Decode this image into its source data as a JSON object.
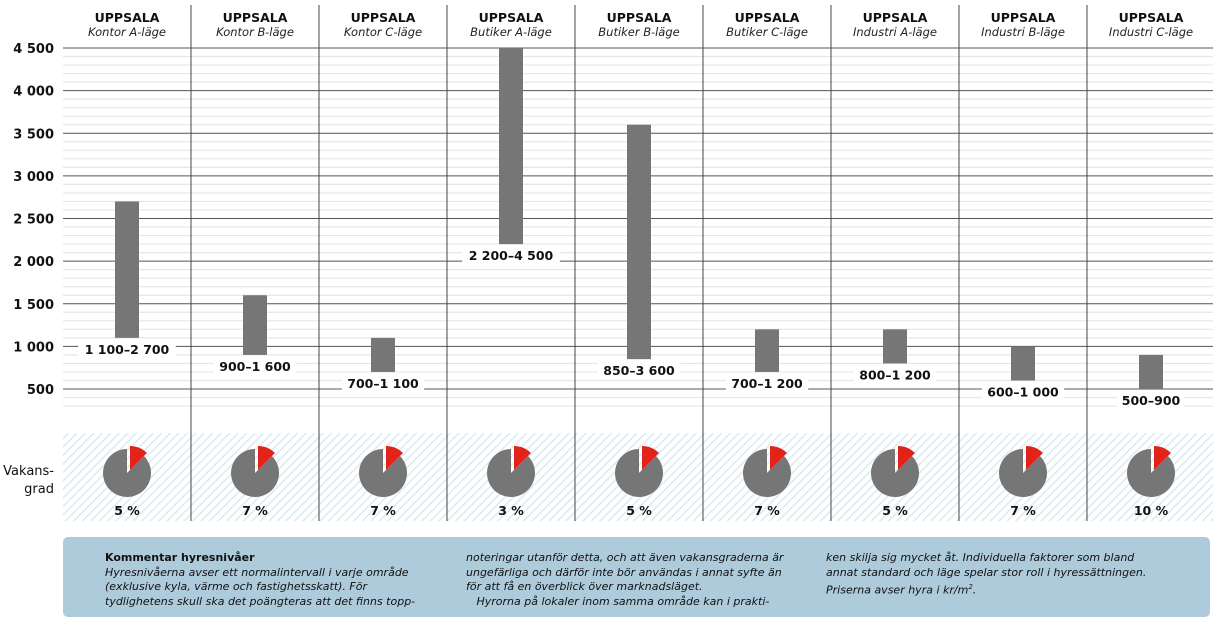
{
  "chart_data": {
    "type": "bar",
    "subtype": "floating-range",
    "ylim": [
      0,
      4500
    ],
    "yticks": [
      500,
      1000,
      1500,
      2000,
      2500,
      3000,
      3500,
      4000,
      4500
    ],
    "ytick_labels": [
      "500",
      "1 000",
      "1 500",
      "2 000",
      "2 500",
      "3 000",
      "3 500",
      "4 000",
      "4 500"
    ],
    "grid": true,
    "categories": [
      {
        "city": "UPPSALA",
        "type": "Kontor A-läge",
        "low": 1100,
        "high": 2700,
        "label": "1 100–2 700",
        "vacancy": 5,
        "vacancy_label": "5 %"
      },
      {
        "city": "UPPSALA",
        "type": "Kontor B-läge",
        "low": 900,
        "high": 1600,
        "label": "900–1 600",
        "vacancy": 7,
        "vacancy_label": "7 %"
      },
      {
        "city": "UPPSALA",
        "type": "Kontor C-läge",
        "low": 700,
        "high": 1100,
        "label": "700–1 100",
        "vacancy": 7,
        "vacancy_label": "7 %"
      },
      {
        "city": "UPPSALA",
        "type": "Butiker A-läge",
        "low": 2200,
        "high": 4500,
        "label": "2 200–4 500",
        "vacancy": 3,
        "vacancy_label": "3 %"
      },
      {
        "city": "UPPSALA",
        "type": "Butiker B-läge",
        "low": 850,
        "high": 3600,
        "label": "850–3 600",
        "vacancy": 5,
        "vacancy_label": "5 %"
      },
      {
        "city": "UPPSALA",
        "type": "Butiker C-läge",
        "low": 700,
        "high": 1200,
        "label": "700–1 200",
        "vacancy": 7,
        "vacancy_label": "7 %"
      },
      {
        "city": "UPPSALA",
        "type": "Industri A-läge",
        "low": 800,
        "high": 1200,
        "label": "800–1 200",
        "vacancy": 5,
        "vacancy_label": "5 %"
      },
      {
        "city": "UPPSALA",
        "type": "Industri B-läge",
        "low": 600,
        "high": 1000,
        "label": "600–1 000",
        "vacancy": 7,
        "vacancy_label": "7 %"
      },
      {
        "city": "UPPSALA",
        "type": "Industri C-läge",
        "low": 500,
        "high": 900,
        "label": "500–900",
        "vacancy": 10,
        "vacancy_label": "10 %"
      }
    ],
    "vacancy_label": "Vakans-\ngrad",
    "colors": {
      "bar": "#767676",
      "pie": "#767676",
      "pie_slice": "#e2231a",
      "grid": "#333333",
      "hatch": "#d6e6ee"
    }
  },
  "comment": {
    "title": "Kommentar hyresnivåer",
    "col1": "Hyresnivåerna avser ett normalintervall i varje område (exklusive kyla, värme och fastighetsskatt). För tydlighetens skull ska det poängteras att det finns topp-",
    "col2a": "noteringar utanför detta, och att även vakansgraderna är ungefärliga och därför inte bör användas i annat syfte än för att få en överblick över marknadsläget.",
    "col2b": "Hyrorna på lokaler inom samma område kan i prakti-",
    "col3": "ken skilja sig mycket åt. Individuella faktorer som bland annat standard och läge spelar stor roll i hyressättningen. Priserna avser hyra i kr/m",
    "col3_sup": "2",
    "col3_end": "."
  }
}
